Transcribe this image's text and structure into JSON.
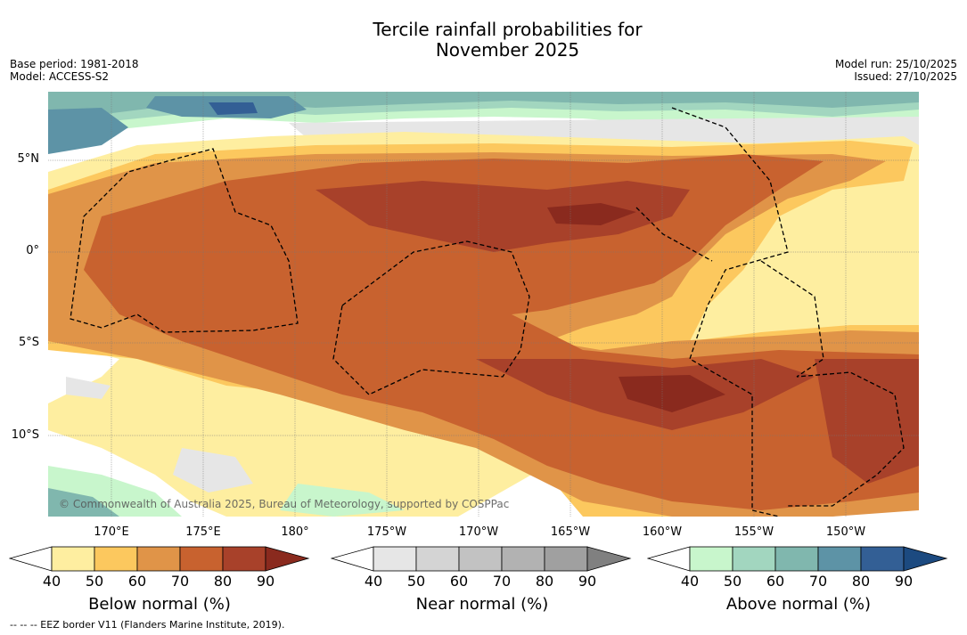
{
  "title_line1": "Tercile rainfall probabilities for",
  "title_line2": "November 2025",
  "base_period": "Base period: 1981-2018",
  "model": "Model: ACCESS-S2",
  "model_run": "Model run: 25/10/2025",
  "issued": "Issued: 27/10/2025",
  "copyright": "© Commonwealth of Australia 2025, Bureau of Meteorology, supported by COSPPac",
  "lat_ticks": [
    "5°N",
    "0°",
    "5°S",
    "10°S"
  ],
  "lon_ticks": [
    "170°E",
    "175°E",
    "180°",
    "175°W",
    "170°W",
    "165°W",
    "160°W",
    "155°W",
    "150°W"
  ],
  "colorbars": [
    {
      "label": "Below normal (%)",
      "ticks": [
        "40",
        "50",
        "60",
        "70",
        "80",
        "90"
      ],
      "colors": [
        "#ffffff",
        "#feeea0",
        "#fcc85e",
        "#e09448",
        "#c8622f",
        "#a8412a",
        "#8a2a1e"
      ]
    },
    {
      "label": "Near normal (%)",
      "ticks": [
        "40",
        "50",
        "60",
        "70",
        "80",
        "90"
      ],
      "colors": [
        "#ffffff",
        "#e6e6e6",
        "#d4d4d4",
        "#c2c2c2",
        "#b2b2b2",
        "#a0a0a0",
        "#808080"
      ]
    },
    {
      "label": "Above normal (%)",
      "ticks": [
        "40",
        "50",
        "60",
        "70",
        "80",
        "90"
      ],
      "colors": [
        "#ffffff",
        "#c8f6cc",
        "#a2d6bf",
        "#80b7ae",
        "#5d93a6",
        "#335f95",
        "#1c4a80"
      ]
    }
  ],
  "legend_note": "--  --  -- EEZ border V11 (Flanders Marine Institute, 2019)."
}
